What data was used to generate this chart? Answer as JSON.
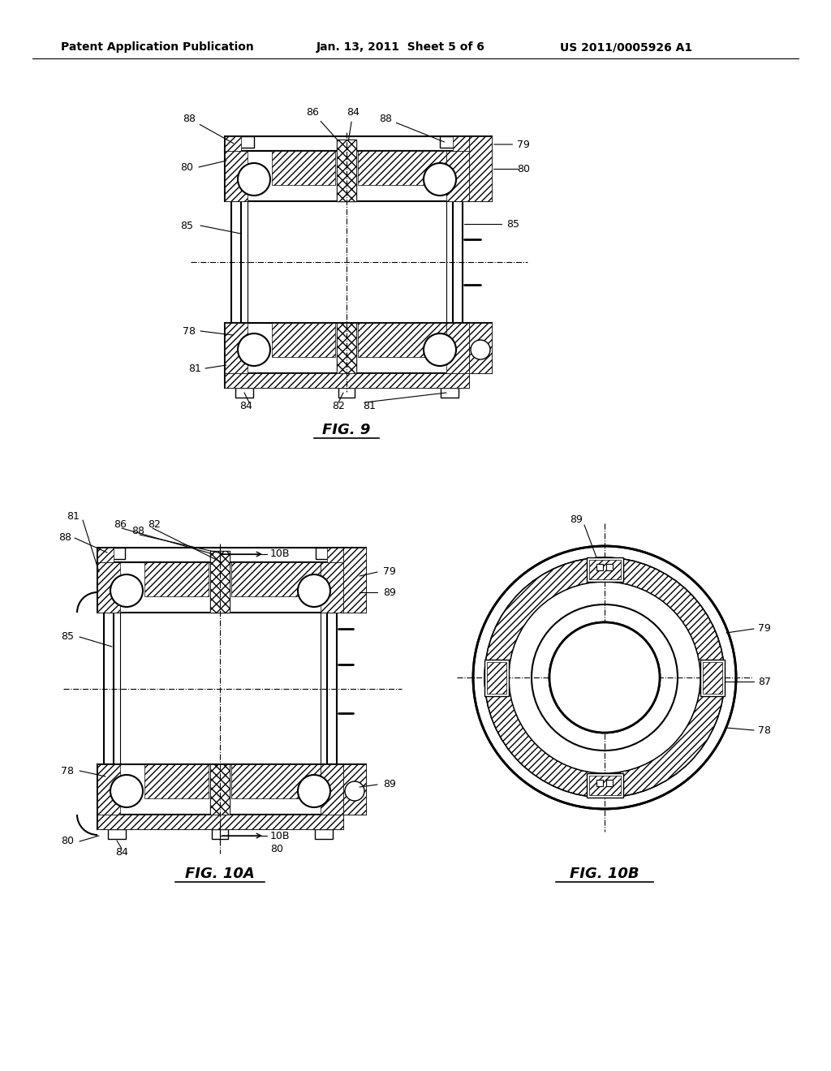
{
  "background_color": "#ffffff",
  "header_left": "Patent Application Publication",
  "header_mid": "Jan. 13, 2011  Sheet 5 of 6",
  "header_right": "US 2011/0005926 A1",
  "header_fontsize": 10,
  "fig9_title": "FIG. 9",
  "fig10a_title": "FIG. 10A",
  "fig10b_title": "FIG. 10B",
  "title_fontsize": 13,
  "label_fontsize": 9
}
